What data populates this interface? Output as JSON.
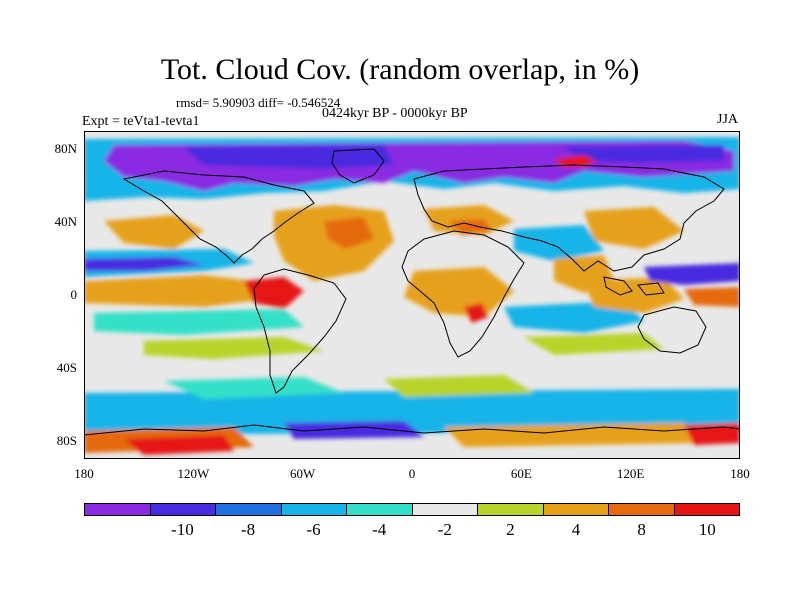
{
  "title": "Tot. Cloud Cov. (random overlap, in %)",
  "stats_line": "rmsd= 5.90903 diff= -0.546524",
  "period": "0424kyr BP - 0000kyr BP",
  "experiment": "Expt = teVta1-tevta1",
  "season": "JJA",
  "map": {
    "projection": "cylindrical equidistant",
    "lon_range": [
      -180,
      180
    ],
    "lat_range": [
      -90,
      90
    ],
    "lat_ticks": [
      {
        "label": "80N",
        "value": 80
      },
      {
        "label": "40N",
        "value": 40
      },
      {
        "label": "0",
        "value": 0
      },
      {
        "label": "40S",
        "value": -40
      },
      {
        "label": "80S",
        "value": -80
      }
    ],
    "lon_ticks": [
      {
        "label": "180",
        "value": -180
      },
      {
        "label": "120W",
        "value": -120
      },
      {
        "label": "60W",
        "value": -60
      },
      {
        "label": "0",
        "value": 0
      },
      {
        "label": "60E",
        "value": 60
      },
      {
        "label": "120E",
        "value": 120
      },
      {
        "label": "180",
        "value": 180
      }
    ]
  },
  "colorbar": {
    "colors": [
      "#8a2be2",
      "#4a2ce0",
      "#1f6fe0",
      "#18b4e8",
      "#35e0c8",
      "#e8e8e8",
      "#b8d42a",
      "#e6a11a",
      "#e56b10",
      "#e61414"
    ],
    "labels": [
      {
        "text": "-10",
        "boundary": 1
      },
      {
        "text": "-8",
        "boundary": 2
      },
      {
        "text": "-6",
        "boundary": 3
      },
      {
        "text": "-4",
        "boundary": 4
      },
      {
        "text": "-2",
        "boundary": 5
      },
      {
        "text": "2",
        "boundary": 6
      },
      {
        "text": "4",
        "boundary": 7
      },
      {
        "text": "8",
        "boundary": 8
      },
      {
        "text": "10",
        "boundary": 9
      }
    ]
  }
}
